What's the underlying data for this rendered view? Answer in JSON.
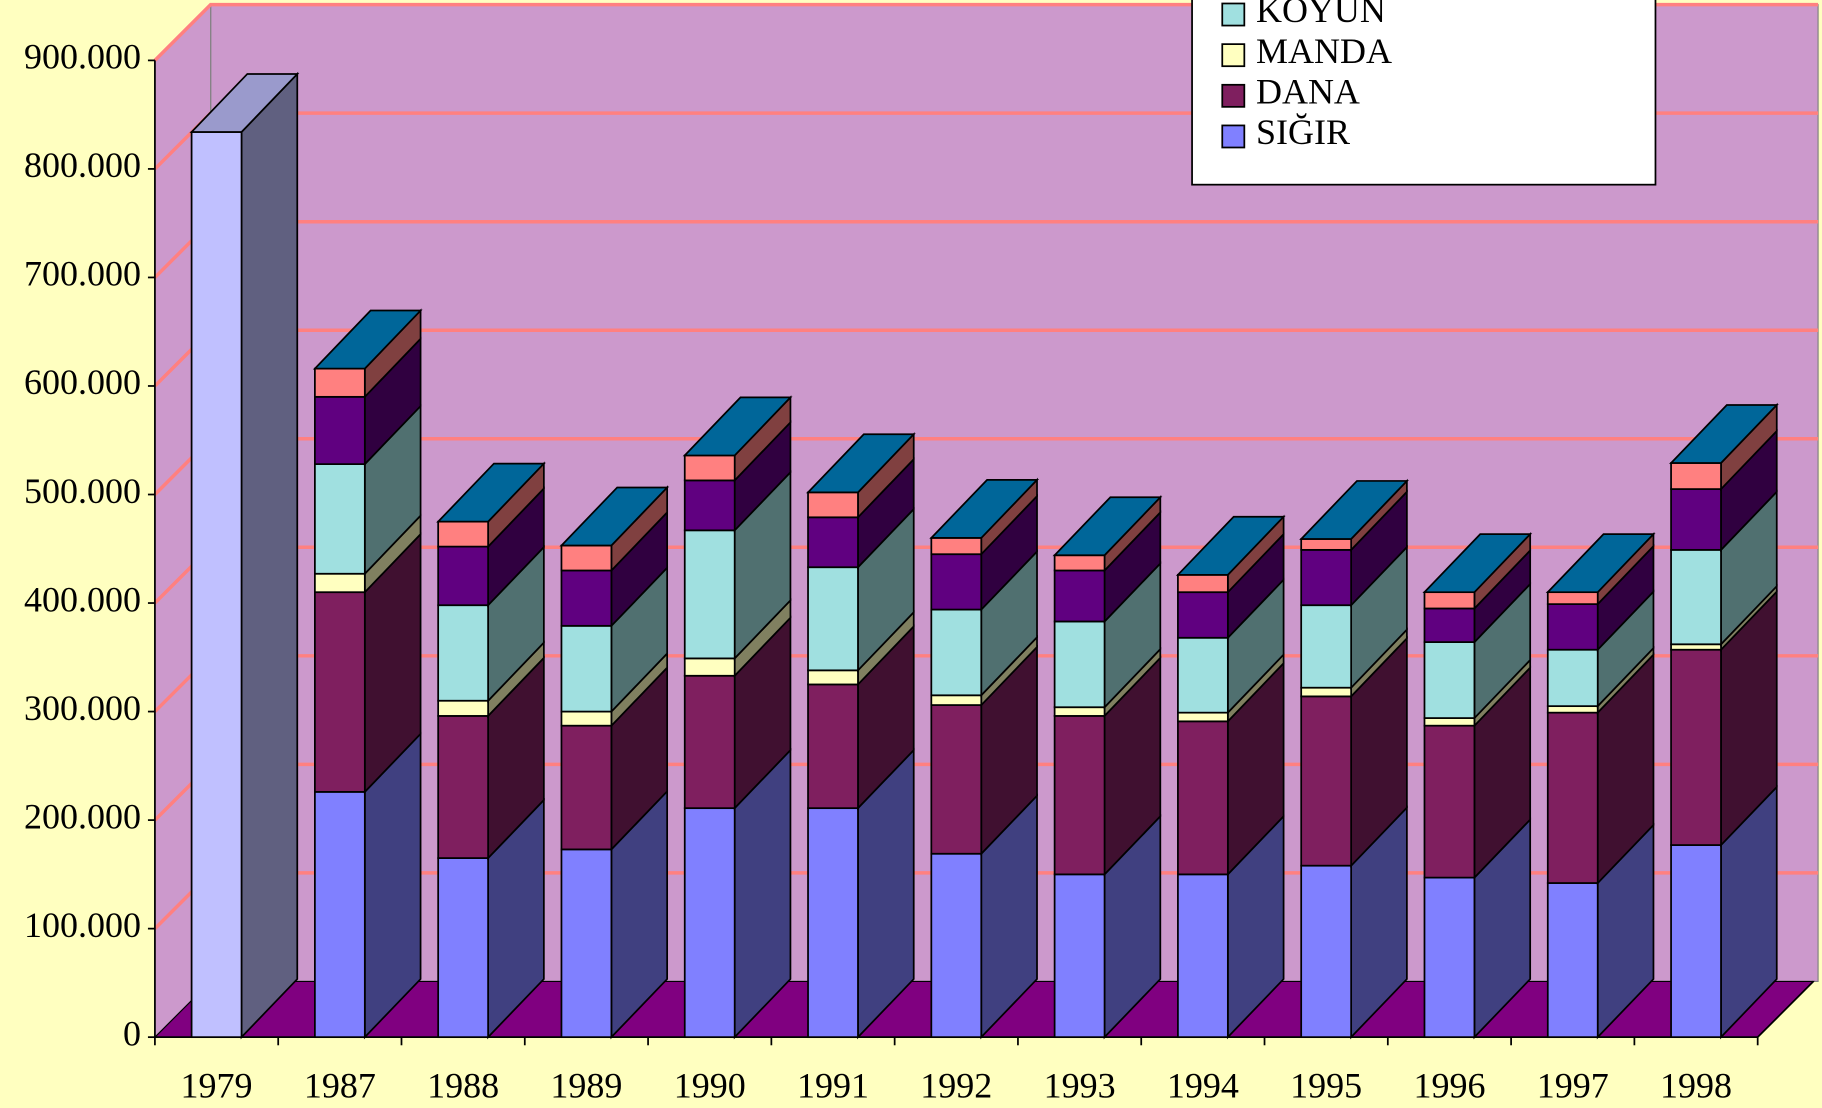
{
  "chart_data": {
    "type": "bar3d_stacked",
    "categories": [
      "1979",
      "1987",
      "1988",
      "1989",
      "1990",
      "1991",
      "1992",
      "1993",
      "1994",
      "1995",
      "1996",
      "1997",
      "1998"
    ],
    "series": [
      {
        "color": "#c0c0ff",
        "values": [
          834000,
          null,
          null,
          null,
          null,
          null,
          null,
          null,
          null,
          null,
          null,
          null,
          null
        ]
      },
      {
        "name": "SIĞIR",
        "color": "#8080ff",
        "values": [
          null,
          226000,
          165000,
          173000,
          211000,
          211000,
          169000,
          150000,
          150000,
          158000,
          147000,
          142000,
          177000
        ]
      },
      {
        "name": "DANA",
        "color": "#7f1f5f",
        "values": [
          null,
          184000,
          131000,
          114000,
          122000,
          114000,
          137000,
          146000,
          141000,
          156000,
          140000,
          157000,
          180000
        ]
      },
      {
        "name": "MANDA",
        "color": "#ffffc0",
        "values": [
          null,
          17000,
          14000,
          13000,
          16000,
          13000,
          9000,
          8000,
          8000,
          8000,
          7000,
          6000,
          5000
        ]
      },
      {
        "name": "KOYUN",
        "color": "#a0e0e0",
        "values": [
          null,
          101000,
          88000,
          79000,
          118000,
          95000,
          79000,
          79000,
          69000,
          76000,
          70000,
          52000,
          87000
        ]
      },
      {
        "color": "#600080",
        "values": [
          null,
          62000,
          54000,
          51000,
          46000,
          46000,
          51000,
          47000,
          42000,
          51000,
          31000,
          42000,
          56000
        ]
      },
      {
        "color": "#ff8080",
        "values": [
          null,
          26000,
          23000,
          23000,
          23000,
          23000,
          15000,
          14000,
          16000,
          10000,
          15000,
          11000,
          24000
        ]
      }
    ],
    "top_color": "#006699",
    "ylim": [
      0,
      900000
    ],
    "yticks": [
      0,
      {
        "value": 100000,
        "label": "100.000"
      },
      {
        "value": 200000,
        "label": "200.000"
      },
      {
        "value": 300000,
        "label": "300.000"
      },
      {
        "value": 400000,
        "label": "400.000"
      },
      {
        "value": 500000,
        "label": "500.000"
      },
      {
        "value": 600000,
        "label": "600.000"
      },
      {
        "value": 700000,
        "label": "700.000"
      },
      {
        "value": 800000,
        "label": "800.000"
      },
      {
        "value": 900000,
        "label": "900.000"
      }
    ],
    "grid": true,
    "grid_color": "#ff8080",
    "wall_color": "#cc99cc",
    "floor_color": "#800080",
    "legend": "top-right"
  }
}
